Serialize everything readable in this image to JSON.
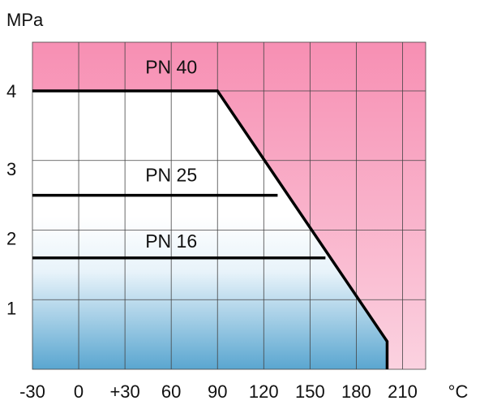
{
  "chart_data": {
    "type": "line",
    "ylabel": "MPa",
    "x_unit": "°C",
    "x_ticks": [
      "-30",
      "0",
      "+30",
      "60",
      "90",
      "120",
      "150",
      "180",
      "210"
    ],
    "x_tick_values": [
      -30,
      0,
      30,
      60,
      90,
      120,
      150,
      180,
      210
    ],
    "y_ticks": [
      1,
      2,
      3,
      4
    ],
    "xlim": [
      -30,
      225
    ],
    "ylim": [
      0,
      4.7
    ],
    "grid": true,
    "series": [
      {
        "name": "PN 40",
        "x": [
          -30,
          90,
          200,
          200
        ],
        "y": [
          4.0,
          4.0,
          0.4,
          0.0
        ]
      },
      {
        "name": "PN 25",
        "x": [
          -30,
          129
        ],
        "y": [
          2.5,
          2.5
        ]
      },
      {
        "name": "PN 16",
        "x": [
          -30,
          160
        ],
        "y": [
          1.6,
          1.6
        ]
      }
    ],
    "annotations": [
      {
        "text": "PN 40",
        "x": 60,
        "y": 4.25
      },
      {
        "text": "PN 25",
        "x": 60,
        "y": 2.7
      },
      {
        "text": "PN 16",
        "x": 60,
        "y": 1.75
      }
    ],
    "colors": {
      "pink_top": "#f78fb3",
      "pink_light": "#fbd2e0",
      "blue_light": "#e8f3fa",
      "blue_bottom": "#5aa6d0",
      "grid": "#444444",
      "line": "#000000"
    }
  }
}
